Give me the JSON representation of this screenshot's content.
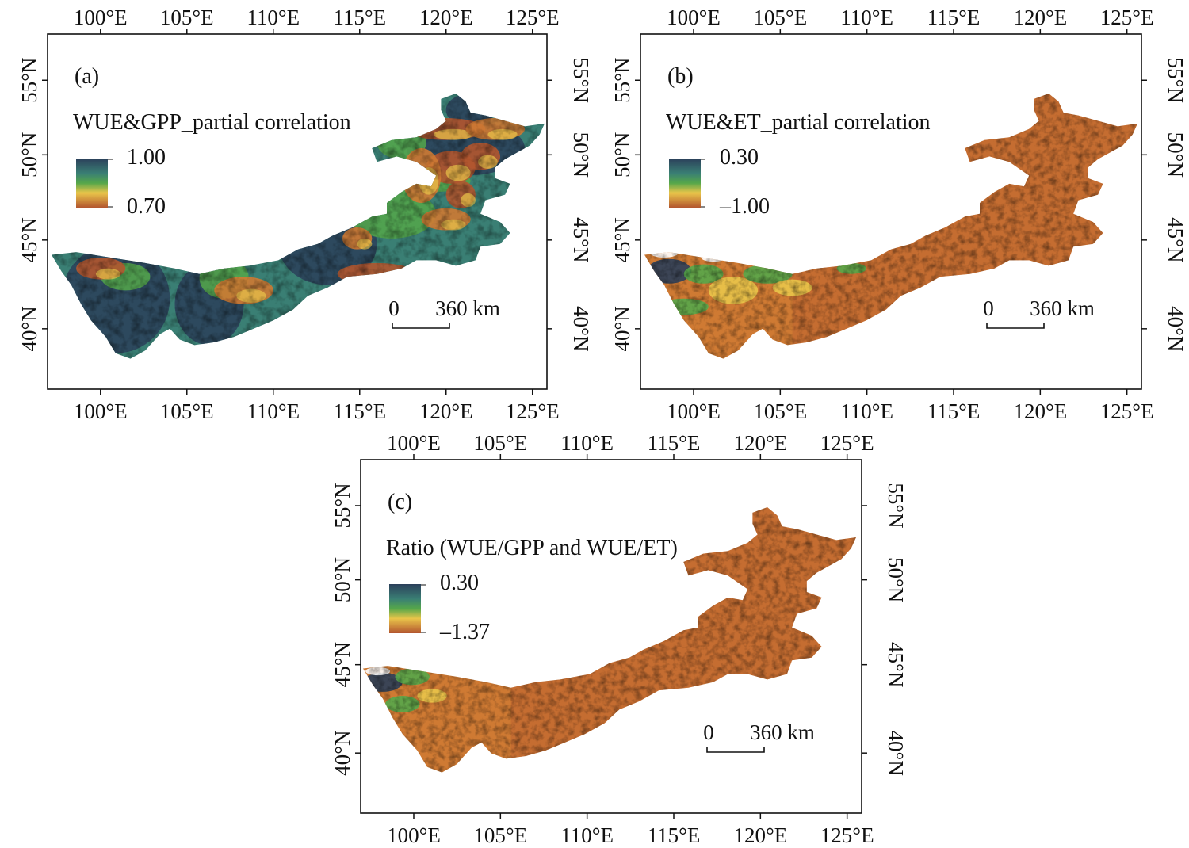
{
  "panels": [
    {
      "id": "a",
      "label": "(a)",
      "title": "WUE&GPP_partial correlation",
      "legend": {
        "max": "1.00",
        "min": "0.70"
      },
      "scalebar": {
        "start": "0",
        "end": "360 km"
      },
      "palette": "high",
      "x_ticks": [
        "100°E",
        "105°E",
        "110°E",
        "115°E",
        "120°E",
        "125°E"
      ],
      "y_ticks": [
        "55°N",
        "50°N",
        "45°N",
        "40°N"
      ]
    },
    {
      "id": "b",
      "label": "(b)",
      "title": "WUE&ET_partial correlation",
      "legend": {
        "max": "0.30",
        "min": "–1.00"
      },
      "scalebar": {
        "start": "0",
        "end": "360 km"
      },
      "palette": "low",
      "x_ticks": [
        "100°E",
        "105°E",
        "110°E",
        "115°E",
        "120°E",
        "125°E"
      ],
      "y_ticks": [
        "55°N",
        "50°N",
        "45°N",
        "40°N"
      ]
    },
    {
      "id": "c",
      "label": "(c)",
      "title": "Ratio (WUE/GPP and WUE/ET)",
      "legend": {
        "max": "0.30",
        "min": "–1.37"
      },
      "scalebar": {
        "start": "0",
        "end": "360 km"
      },
      "palette": "low",
      "x_ticks": [
        "100°E",
        "105°E",
        "110°E",
        "115°E",
        "120°E",
        "125°E"
      ],
      "y_ticks": [
        "55°N",
        "50°N",
        "45°N",
        "40°N"
      ]
    }
  ],
  "colors": {
    "dark_navy": "#2b3f5a",
    "teal": "#3a7f74",
    "green": "#55a74a",
    "yellow": "#e9c54a",
    "orange": "#cf7a33",
    "red_brown": "#b3562f"
  }
}
